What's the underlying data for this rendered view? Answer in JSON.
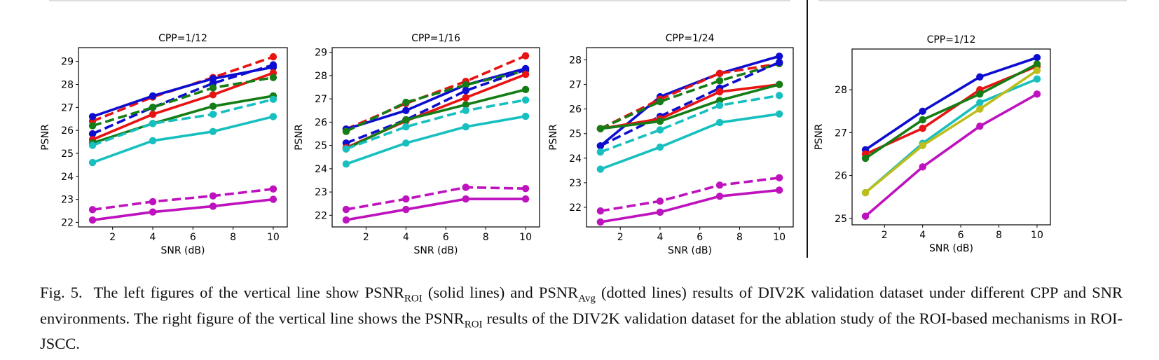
{
  "colors": {
    "blue": "#0d0dd0",
    "red": "#e81313",
    "green": "#157d15",
    "cyan": "#18bfbf",
    "magenta": "#be12be",
    "yellow": "#bdbd1b"
  },
  "chart_data": [
    {
      "type": "line",
      "title": "CPP=1/12",
      "xlabel": "SNR (dB)",
      "ylabel": "PSNR",
      "x": [
        1,
        4,
        7,
        10
      ],
      "xlim": [
        0.3,
        10.7
      ],
      "ylim": [
        21.8,
        29.6
      ],
      "xticks": [
        2,
        4,
        6,
        8,
        10
      ],
      "yticks": [
        22,
        23,
        24,
        25,
        26,
        27,
        28,
        29
      ],
      "series": [
        {
          "color": "red",
          "style": "dashed",
          "values": [
            26.4,
            27.45,
            28.3,
            29.2
          ]
        },
        {
          "color": "blue",
          "style": "solid",
          "values": [
            26.6,
            27.5,
            28.25,
            28.75
          ]
        },
        {
          "color": "blue",
          "style": "dashed",
          "values": [
            25.85,
            27.0,
            28.05,
            28.85
          ]
        },
        {
          "color": "red",
          "style": "solid",
          "values": [
            25.6,
            26.7,
            27.55,
            28.5
          ]
        },
        {
          "color": "green",
          "style": "dashed",
          "values": [
            26.2,
            27.0,
            27.85,
            28.3
          ]
        },
        {
          "color": "green",
          "style": "solid",
          "values": [
            25.45,
            26.3,
            27.05,
            27.5
          ]
        },
        {
          "color": "cyan",
          "style": "dashed",
          "values": [
            25.35,
            26.3,
            26.7,
            27.35
          ]
        },
        {
          "color": "cyan",
          "style": "solid",
          "values": [
            24.6,
            25.55,
            25.95,
            26.6
          ]
        },
        {
          "color": "magenta",
          "style": "dashed",
          "values": [
            22.55,
            22.9,
            23.15,
            23.45
          ]
        },
        {
          "color": "magenta",
          "style": "solid",
          "values": [
            22.1,
            22.45,
            22.7,
            23.0
          ]
        }
      ]
    },
    {
      "type": "line",
      "title": "CPP=1/16",
      "xlabel": "SNR (dB)",
      "ylabel": "PSNR",
      "x": [
        1,
        4,
        7,
        10
      ],
      "xlim": [
        0.3,
        10.7
      ],
      "ylim": [
        21.5,
        29.2
      ],
      "xticks": [
        2,
        4,
        6,
        8,
        10
      ],
      "yticks": [
        22,
        23,
        24,
        25,
        26,
        27,
        28,
        29
      ],
      "series": [
        {
          "color": "red",
          "style": "dashed",
          "values": [
            25.7,
            26.8,
            27.75,
            28.85
          ]
        },
        {
          "color": "blue",
          "style": "solid",
          "values": [
            25.7,
            26.5,
            27.6,
            28.3
          ]
        },
        {
          "color": "green",
          "style": "dashed",
          "values": [
            25.6,
            26.85,
            27.6,
            28.2
          ]
        },
        {
          "color": "blue",
          "style": "dashed",
          "values": [
            25.1,
            26.1,
            27.35,
            28.25
          ]
        },
        {
          "color": "red",
          "style": "solid",
          "values": [
            24.9,
            26.05,
            27.05,
            28.05
          ]
        },
        {
          "color": "green",
          "style": "solid",
          "values": [
            24.85,
            26.1,
            26.75,
            27.4
          ]
        },
        {
          "color": "cyan",
          "style": "dashed",
          "values": [
            24.85,
            25.8,
            26.5,
            26.95
          ]
        },
        {
          "color": "cyan",
          "style": "solid",
          "values": [
            24.2,
            25.1,
            25.8,
            26.25
          ]
        },
        {
          "color": "magenta",
          "style": "dashed",
          "values": [
            22.25,
            22.7,
            23.2,
            23.15
          ]
        },
        {
          "color": "magenta",
          "style": "solid",
          "values": [
            21.8,
            22.25,
            22.7,
            22.7
          ]
        }
      ]
    },
    {
      "type": "line",
      "title": "CPP=1/24",
      "xlabel": "SNR (dB)",
      "ylabel": "PSNR",
      "x": [
        1,
        4,
        7,
        10
      ],
      "xlim": [
        0.3,
        10.7
      ],
      "ylim": [
        21.2,
        28.5
      ],
      "xticks": [
        2,
        4,
        6,
        8,
        10
      ],
      "yticks": [
        22,
        23,
        24,
        25,
        26,
        27,
        28
      ],
      "series": [
        {
          "color": "blue",
          "style": "solid",
          "values": [
            24.5,
            26.5,
            27.45,
            28.15
          ]
        },
        {
          "color": "red",
          "style": "dashed",
          "values": [
            25.2,
            26.4,
            27.45,
            27.85
          ]
        },
        {
          "color": "green",
          "style": "dashed",
          "values": [
            25.2,
            26.3,
            27.15,
            27.85
          ]
        },
        {
          "color": "blue",
          "style": "dashed",
          "values": [
            24.5,
            25.7,
            26.85,
            27.9
          ]
        },
        {
          "color": "red",
          "style": "solid",
          "values": [
            25.2,
            25.6,
            26.7,
            27.0
          ]
        },
        {
          "color": "green",
          "style": "solid",
          "values": [
            25.2,
            25.5,
            26.35,
            27.0
          ]
        },
        {
          "color": "cyan",
          "style": "dashed",
          "values": [
            24.25,
            25.15,
            26.15,
            26.55
          ]
        },
        {
          "color": "cyan",
          "style": "solid",
          "values": [
            23.55,
            24.45,
            25.45,
            25.8
          ]
        },
        {
          "color": "magenta",
          "style": "dashed",
          "values": [
            21.85,
            22.25,
            22.9,
            23.2
          ]
        },
        {
          "color": "magenta",
          "style": "solid",
          "values": [
            21.4,
            21.8,
            22.45,
            22.7
          ]
        }
      ]
    },
    {
      "type": "line",
      "title": "CPP=1/12",
      "xlabel": "SNR (dB)",
      "ylabel": "PSNR",
      "x": [
        1,
        4,
        7,
        10
      ],
      "xlim": [
        0.3,
        10.7
      ],
      "ylim": [
        24.85,
        28.95
      ],
      "xticks": [
        2,
        4,
        6,
        8,
        10
      ],
      "yticks": [
        25,
        26,
        27,
        28
      ],
      "series": [
        {
          "color": "blue",
          "style": "solid",
          "values": [
            26.6,
            27.5,
            28.3,
            28.75
          ]
        },
        {
          "color": "red",
          "style": "solid",
          "values": [
            26.5,
            27.1,
            28.0,
            28.55
          ]
        },
        {
          "color": "green",
          "style": "solid",
          "values": [
            26.4,
            27.3,
            27.9,
            28.6
          ]
        },
        {
          "color": "cyan",
          "style": "solid",
          "values": [
            25.6,
            26.75,
            27.7,
            28.25
          ]
        },
        {
          "color": "yellow",
          "style": "solid",
          "values": [
            25.6,
            26.7,
            27.55,
            28.45
          ]
        },
        {
          "color": "magenta",
          "style": "solid",
          "values": [
            25.05,
            26.2,
            27.15,
            27.9
          ]
        }
      ]
    }
  ],
  "caption": {
    "prefix": "Fig. 5.",
    "t1": "The left figures of the vertical line show PSNR",
    "s1": "ROI",
    "t2": " (solid lines) and PSNR",
    "s2": "Avg",
    "t3": " (dotted lines) results of DIV2K validation dataset under different CPP and SNR environments. The right figure of the vertical line shows the PSNR",
    "s3": "ROI",
    "t4": " results of the DIV2K validation dataset for the ablation study of the ROI-based mechanisms in ROI-JSCC."
  }
}
